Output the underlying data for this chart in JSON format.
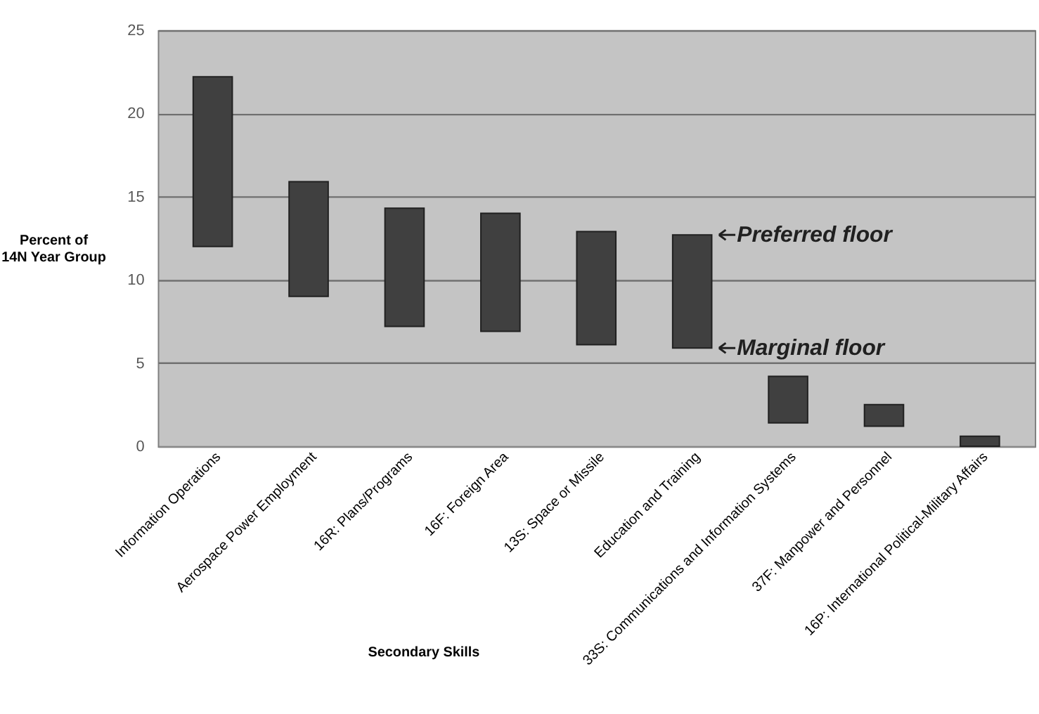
{
  "chart_data": {
    "type": "bar",
    "xlabel": "Secondary Skills",
    "ylabel": "Percent of 14N Year Group",
    "categories": [
      "Information Operations",
      "Aerospace Power Employment",
      "16R: Plans/Programs",
      "16F: Foreign Area",
      "13S: Space or Missile",
      "Education and Training",
      "33S: Communications and Information Systems",
      "37F: Manpower and Personnel",
      "16P: International Political-Military Affairs"
    ],
    "base": [
      12.0,
      9.0,
      7.2,
      6.9,
      6.1,
      5.9,
      1.4,
      1.2,
      0
    ],
    "values": [
      10.2,
      6.9,
      7.1,
      7.1,
      6.8,
      6.8,
      2.8,
      1.3,
      0.6
    ],
    "color": "#404040",
    "ylim": [
      0,
      25
    ],
    "yticks": [
      0,
      5,
      10,
      15,
      20,
      25
    ],
    "grid": "y",
    "annotations": [
      {
        "text": "Preferred floor",
        "x": "Education and Training",
        "y": 12.7
      },
      {
        "text": "Marginal floor",
        "x": "Education and Training",
        "y": 5.9
      }
    ]
  }
}
